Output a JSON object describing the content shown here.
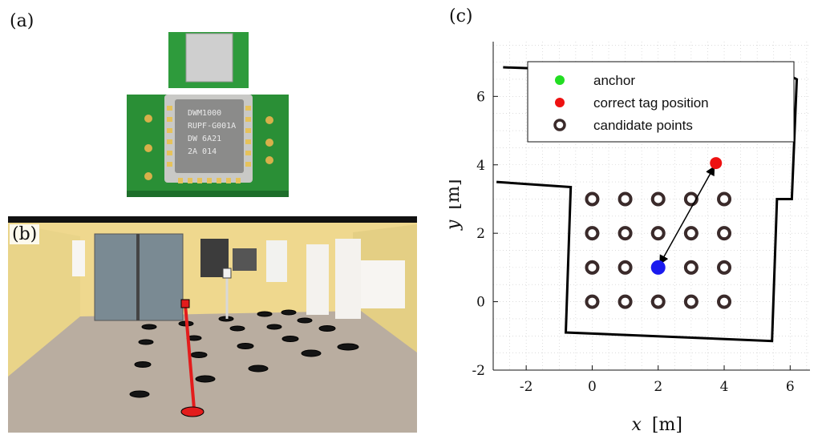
{
  "panels": {
    "a": "(a)",
    "b": "(b)",
    "c": "(c)"
  },
  "chip": {
    "line1": "DWM1000",
    "line2": "RUPF-G001A",
    "line3": "DW 6A21",
    "line4": "2A 014"
  },
  "chart_data": {
    "type": "scatter",
    "xlabel_var": "x",
    "xlabel_unit": "[m]",
    "ylabel_var": "y",
    "ylabel_unit": "[m]",
    "xlim": [
      -3,
      6.6
    ],
    "ylim": [
      -2,
      7.6
    ],
    "xticks": [
      -2,
      0,
      2,
      4,
      6
    ],
    "yticks": [
      -2,
      0,
      2,
      4,
      6
    ],
    "grid": "dotted",
    "legend_position": "top",
    "legend": [
      {
        "label": "anchor",
        "color": "#22dd22",
        "marker": "filled-circle"
      },
      {
        "label": "correct tag position",
        "color": "#ee1111",
        "marker": "filled-circle"
      },
      {
        "label": "candidate points",
        "color": "#3a2a2a",
        "marker": "ring"
      }
    ],
    "series": [
      {
        "name": "candidate points",
        "points": [
          [
            0,
            3
          ],
          [
            1,
            3
          ],
          [
            2,
            3
          ],
          [
            3,
            3
          ],
          [
            4,
            3
          ],
          [
            0,
            2
          ],
          [
            1,
            2
          ],
          [
            2,
            2
          ],
          [
            3,
            2
          ],
          [
            4,
            2
          ],
          [
            0,
            1
          ],
          [
            1,
            1
          ],
          [
            3,
            1
          ],
          [
            4,
            1
          ],
          [
            0,
            0
          ],
          [
            1,
            0
          ],
          [
            2,
            0
          ],
          [
            3,
            0
          ],
          [
            4,
            0
          ]
        ]
      },
      {
        "name": "correct tag position",
        "points": [
          [
            3.75,
            4.05
          ]
        ]
      },
      {
        "name": "estimated position",
        "points": [
          [
            2,
            1
          ]
        ],
        "color": "#1a1aee"
      }
    ],
    "arrow": {
      "from": [
        2.05,
        1.1
      ],
      "to": [
        3.7,
        3.95
      ]
    },
    "walls": [
      [
        [
          -2.7,
          6.85
        ],
        [
          6.1,
          6.55
        ],
        [
          6.2,
          6.5
        ],
        [
          6.05,
          3.0
        ],
        [
          5.6,
          3.0
        ],
        [
          5.45,
          -1.15
        ],
        [
          -0.8,
          -0.9
        ],
        [
          -0.65,
          3.35
        ],
        [
          -2.9,
          3.5
        ]
      ]
    ],
    "background_palette": {
      "wall": "#f0dc8e",
      "floor": "#b9ada0",
      "door": "#7a8a93"
    }
  }
}
